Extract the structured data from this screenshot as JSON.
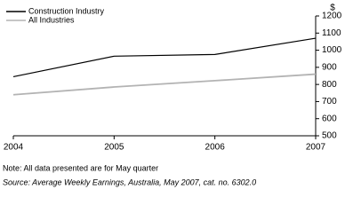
{
  "chart_data": {
    "type": "line",
    "y_label": "$",
    "x": [
      2004,
      2005,
      2006,
      2007
    ],
    "xlim": [
      2004,
      2007
    ],
    "xticks": [
      2004,
      2005,
      2006,
      2007
    ],
    "ylim": [
      500,
      1200
    ],
    "yticks": [
      500,
      600,
      700,
      800,
      900,
      1000,
      1100,
      1200
    ],
    "series": [
      {
        "name": "Construction Industry",
        "color": "#000000",
        "values": [
          845,
          965,
          975,
          1070
        ]
      },
      {
        "name": "All Industries",
        "color": "#b3b3b3",
        "values": [
          740,
          785,
          822,
          860
        ]
      }
    ],
    "legend": "top-left",
    "note": "Note: All data presented are for May quarter",
    "source": "Source: Average Weekly Earnings, Australia, May 2007, cat. no. 6302.0"
  }
}
